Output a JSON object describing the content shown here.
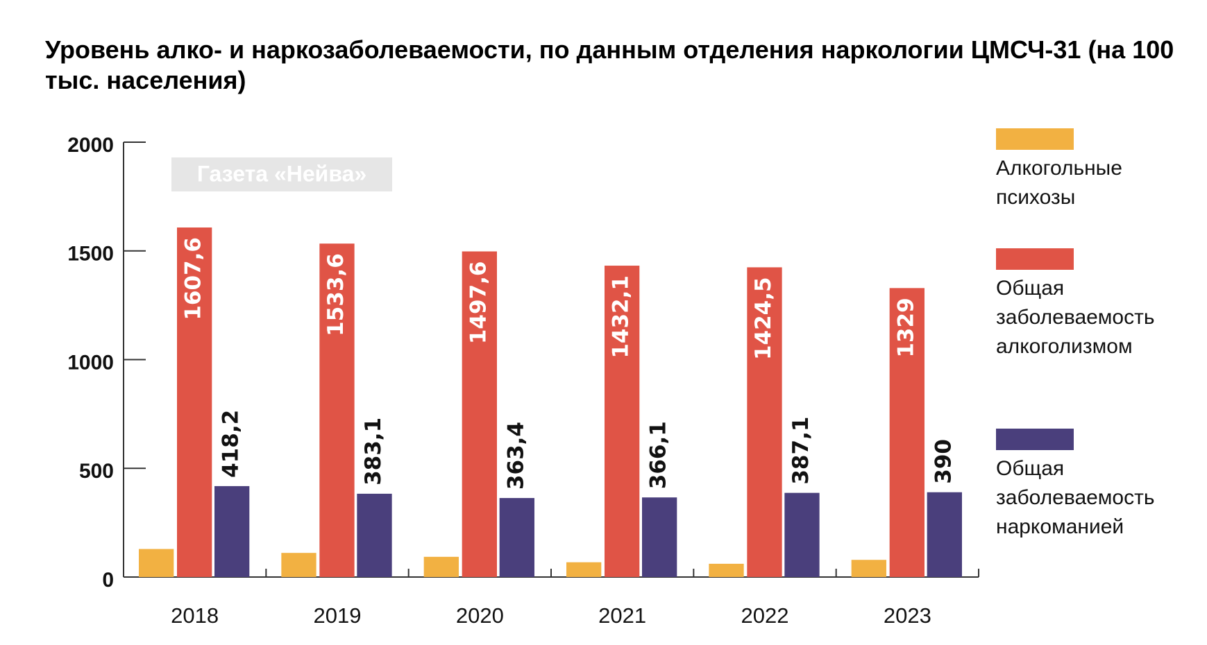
{
  "chart_data": {
    "type": "bar",
    "title": "Уровень алко- и наркозаболеваемости, по данным отделения наркологии ЦМСЧ-31 (на 100 тыс. населения)",
    "watermark": "Газета «Нейва»",
    "categories": [
      "2018",
      "2019",
      "2020",
      "2021",
      "2022",
      "2023"
    ],
    "series": [
      {
        "name": "Алкогольные психозы",
        "color": "#f2b142",
        "values": [
          129,
          111,
          93,
          68,
          61,
          79
        ]
      },
      {
        "name": "Общая заболеваемость алкоголизмом",
        "color": "#e05446",
        "values": [
          1607.6,
          1533.6,
          1497.6,
          1432.1,
          1424.5,
          1329
        ],
        "value_labels": [
          "1607,6",
          "1533,6",
          "1497,6",
          "1432,1",
          "1424,5",
          "1329"
        ]
      },
      {
        "name": "Общая заболеваемость наркоманией",
        "color": "#4a3f7c",
        "values": [
          418.2,
          383.1,
          363.4,
          366.1,
          387.1,
          390
        ],
        "value_labels": [
          "418,2",
          "383,1",
          "363,4",
          "366,1",
          "387,1",
          "390"
        ]
      }
    ],
    "ylim": [
      0,
      2000
    ],
    "yticks": [
      0,
      500,
      1000,
      1500,
      2000
    ],
    "legend": "right"
  }
}
